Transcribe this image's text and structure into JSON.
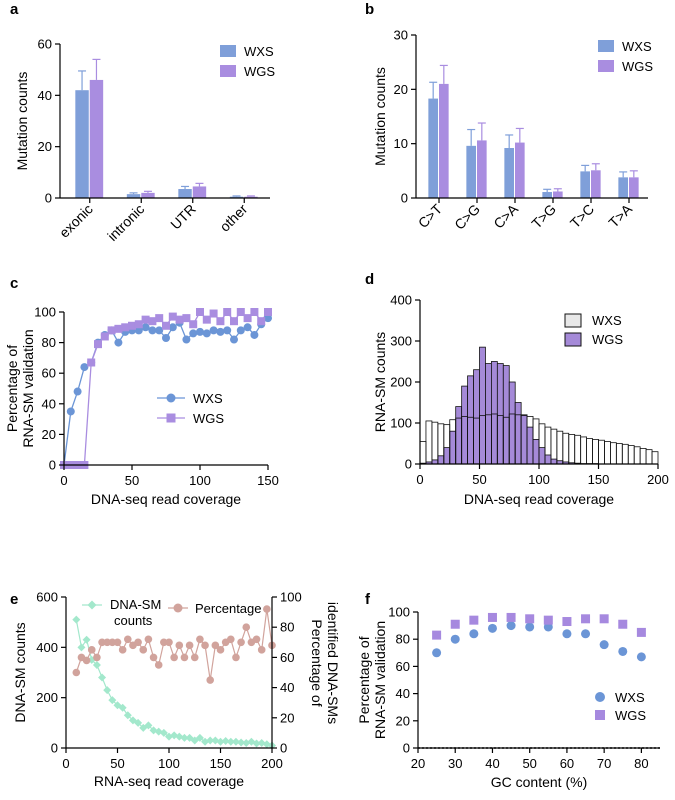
{
  "colors": {
    "wxs": "#7f9fd9",
    "wgs": "#a98de0",
    "wxs_dark": "#6b95d6",
    "wgs_dark": "#a689df",
    "counts": "#a3e8cc",
    "percentage": "#d1a39c",
    "histo_wxs": "#e8e8e8",
    "histo_wgs": "#a58ad8"
  },
  "chart_data": [
    {
      "panel": "a",
      "type": "bar",
      "ylabel": "Mutation counts",
      "ylim": [
        0,
        60
      ],
      "yticks": [
        0,
        20,
        40,
        60
      ],
      "categories": [
        "exonic",
        "intronic",
        "UTR",
        "other"
      ],
      "series": [
        {
          "name": "WXS",
          "values": [
            42,
            1.5,
            3.5,
            0.5
          ],
          "errors": [
            7.5,
            0.5,
            1.0,
            0.3
          ]
        },
        {
          "name": "WGS",
          "values": [
            46,
            2,
            4.5,
            0.5
          ],
          "errors": [
            8.0,
            0.6,
            1.2,
            0.3
          ]
        }
      ]
    },
    {
      "panel": "b",
      "type": "bar",
      "ylabel": "Mutation counts",
      "ylim": [
        0,
        30
      ],
      "yticks": [
        0,
        10,
        20,
        30
      ],
      "categories": [
        "C>T",
        "C>G",
        "C>A",
        "T>G",
        "T>C",
        "T>A"
      ],
      "series": [
        {
          "name": "WXS",
          "values": [
            18.3,
            9.6,
            9.2,
            1.1,
            4.9,
            3.8
          ],
          "errors": [
            3.0,
            3.0,
            2.4,
            0.5,
            1.1,
            1.0
          ]
        },
        {
          "name": "WGS",
          "values": [
            21.0,
            10.6,
            10.2,
            1.2,
            5.1,
            3.8
          ],
          "errors": [
            3.4,
            3.2,
            2.6,
            0.5,
            1.2,
            1.2
          ]
        }
      ]
    },
    {
      "panel": "c",
      "type": "line",
      "xlabel": "DNA-seq read coverage",
      "ylabel_lines": [
        "Percentage of",
        "RNA-SM validation"
      ],
      "xlim": [
        0,
        150
      ],
      "ylim": [
        0,
        100
      ],
      "xticks": [
        0,
        50,
        100,
        150
      ],
      "yticks": [
        0,
        20,
        40,
        60,
        80,
        100
      ],
      "series": [
        {
          "name": "WXS",
          "marker": "circle",
          "x": [
            0,
            5,
            10,
            15,
            20,
            25,
            30,
            35,
            40,
            45,
            50,
            55,
            60,
            65,
            70,
            75,
            80,
            85,
            90,
            95,
            100,
            105,
            110,
            115,
            120,
            125,
            130,
            135,
            140,
            145,
            150
          ],
          "y": [
            0,
            35,
            48,
            64,
            67,
            80,
            85,
            88,
            80,
            87,
            88,
            88,
            90,
            88,
            88,
            83,
            90,
            93,
            82,
            86,
            87,
            86,
            88,
            87,
            88,
            82,
            88,
            90,
            85,
            92,
            96
          ]
        },
        {
          "name": "WGS",
          "marker": "square",
          "x": [
            0,
            5,
            10,
            15,
            20,
            25,
            30,
            35,
            40,
            45,
            50,
            55,
            60,
            65,
            70,
            75,
            80,
            85,
            90,
            95,
            100,
            105,
            110,
            115,
            120,
            125,
            130,
            135,
            140,
            145,
            150
          ],
          "y": [
            0,
            0,
            0,
            0,
            67,
            79,
            84,
            88,
            89,
            90,
            91,
            92,
            95,
            94,
            96,
            91,
            97,
            95,
            96,
            92,
            100,
            95,
            99,
            94,
            100,
            94,
            100,
            96,
            100,
            94,
            100
          ]
        }
      ]
    },
    {
      "panel": "d",
      "type": "histogram",
      "xlabel": "DNA-seq read coverage",
      "ylabel": "RNA-SM counts",
      "xlim": [
        0,
        200
      ],
      "ylim": [
        0,
        400
      ],
      "xticks": [
        0,
        50,
        100,
        150,
        200
      ],
      "yticks": [
        0,
        100,
        200,
        300,
        400
      ],
      "bin_width": 5,
      "series": [
        {
          "name": "WXS",
          "values": [
            55,
            105,
            102,
            98,
            96,
            108,
            112,
            116,
            114,
            112,
            118,
            120,
            122,
            118,
            114,
            122,
            120,
            118,
            116,
            110,
            98,
            90,
            85,
            80,
            75,
            72,
            70,
            66,
            62,
            60,
            58,
            55,
            52,
            50,
            48,
            45,
            42,
            38,
            35,
            30
          ]
        },
        {
          "name": "WGS",
          "values": [
            2,
            5,
            10,
            20,
            40,
            80,
            140,
            190,
            215,
            230,
            285,
            245,
            250,
            245,
            240,
            200,
            150,
            120,
            90,
            60,
            40,
            22,
            12,
            8,
            5,
            3,
            2,
            1,
            1,
            1,
            0,
            0,
            0,
            0,
            0,
            0,
            0,
            0,
            0,
            0
          ]
        }
      ]
    },
    {
      "panel": "e",
      "type": "line",
      "xlabel": "RNA-seq read coverage",
      "ylabel": "DNA-SM counts",
      "ylabel_right_lines": [
        "Percentage of",
        "identified DNA-SMs"
      ],
      "xlim": [
        0,
        200
      ],
      "ylim": [
        0,
        600
      ],
      "ylim_right": [
        0,
        100
      ],
      "xticks": [
        0,
        50,
        100,
        150,
        200
      ],
      "yticks": [
        0,
        200,
        400,
        600
      ],
      "yticks_right": [
        0,
        20,
        40,
        60,
        80,
        100
      ],
      "series": [
        {
          "name": "DNA-SM counts",
          "axis": "left",
          "marker": "diamond",
          "x": [
            10,
            15,
            20,
            25,
            30,
            35,
            40,
            45,
            50,
            55,
            60,
            65,
            70,
            75,
            80,
            85,
            90,
            95,
            100,
            105,
            110,
            115,
            120,
            125,
            130,
            135,
            140,
            145,
            150,
            155,
            160,
            165,
            170,
            175,
            180,
            185,
            190,
            195,
            200
          ],
          "y": [
            510,
            400,
            430,
            350,
            330,
            280,
            230,
            190,
            170,
            160,
            130,
            110,
            100,
            80,
            90,
            70,
            65,
            60,
            45,
            50,
            45,
            40,
            40,
            30,
            40,
            25,
            30,
            30,
            25,
            28,
            25,
            25,
            22,
            20,
            25,
            18,
            20,
            15,
            10
          ]
        },
        {
          "name": "Percentage",
          "axis": "right",
          "marker": "circle",
          "x": [
            10,
            15,
            20,
            25,
            30,
            35,
            40,
            45,
            50,
            55,
            60,
            65,
            70,
            75,
            80,
            85,
            90,
            95,
            100,
            105,
            110,
            115,
            120,
            125,
            130,
            135,
            140,
            145,
            150,
            155,
            160,
            165,
            170,
            175,
            180,
            185,
            190,
            195,
            200
          ],
          "y": [
            50,
            60,
            58,
            65,
            60,
            70,
            70,
            70,
            70,
            65,
            72,
            68,
            70,
            65,
            72,
            60,
            55,
            70,
            70,
            60,
            68,
            60,
            68,
            60,
            72,
            68,
            45,
            68,
            65,
            70,
            72,
            60,
            70,
            80,
            70,
            72,
            65,
            92,
            68
          ]
        }
      ]
    },
    {
      "panel": "f",
      "type": "scatter",
      "xlabel": "GC content (%)",
      "ylabel_lines": [
        "Percentage of",
        "RNA-SM validation"
      ],
      "xlim": [
        20,
        85
      ],
      "ylim": [
        0,
        100
      ],
      "xticks": [
        20,
        30,
        40,
        50,
        60,
        70,
        80
      ],
      "yticks": [
        0,
        20,
        40,
        60,
        80,
        100
      ],
      "series": [
        {
          "name": "WXS",
          "marker": "circle",
          "x": [
            25,
            30,
            35,
            40,
            45,
            50,
            55,
            60,
            65,
            70,
            75,
            80
          ],
          "y": [
            70,
            80,
            84,
            88,
            90,
            89,
            89,
            84,
            84,
            76,
            71,
            67
          ]
        },
        {
          "name": "WGS",
          "marker": "square",
          "x": [
            25,
            30,
            35,
            40,
            45,
            50,
            55,
            60,
            65,
            70,
            75,
            80
          ],
          "y": [
            83,
            91,
            94,
            96,
            96,
            95,
            94,
            93,
            95,
            95,
            91,
            85
          ]
        }
      ]
    }
  ]
}
